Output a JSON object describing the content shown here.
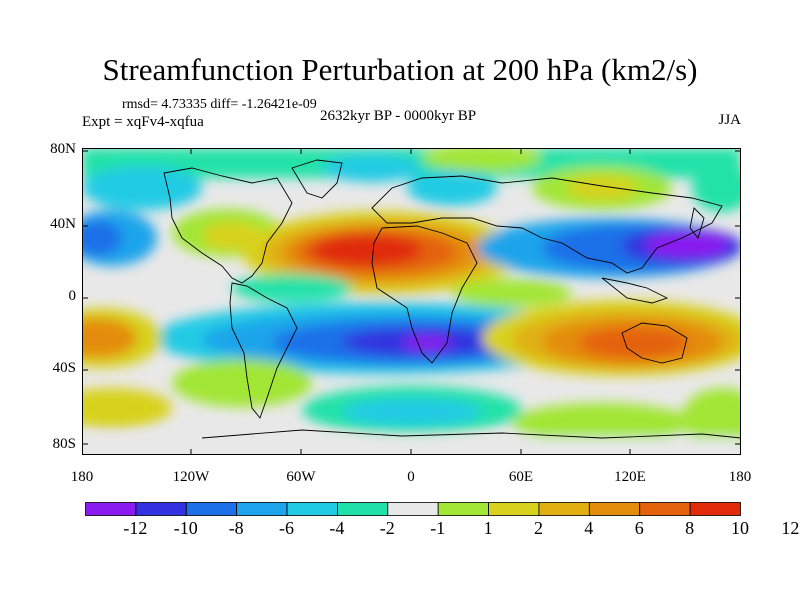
{
  "title": "Streamfunction Perturbation at 200 hPa (km2/s)",
  "stats": "rmsd= 4.73335 diff= -1.26421e-09",
  "experiment": "Expt = xqFv4-xqfua",
  "period": "2632kyr BP - 0000kyr BP",
  "season": "JJA",
  "map": {
    "lat_labels": [
      "80N",
      "40N",
      "0",
      "40S",
      "80S"
    ],
    "lon_labels": [
      "180",
      "120W",
      "60W",
      "0",
      "60E",
      "120E",
      "180"
    ]
  },
  "colorbar": {
    "colors": [
      "#8a1cf0",
      "#3232e0",
      "#1e70e8",
      "#1fa4eb",
      "#22cbe4",
      "#20e2a8",
      "#e8e8e8",
      "#a2e636",
      "#d8d21e",
      "#e0b012",
      "#e48c0c",
      "#e4620c",
      "#e02a0a"
    ],
    "labels": [
      "-12",
      "-10",
      "-8",
      "-6",
      "-4",
      "-2",
      "-1",
      "1",
      "2",
      "4",
      "6",
      "8",
      "10",
      "12"
    ]
  }
}
